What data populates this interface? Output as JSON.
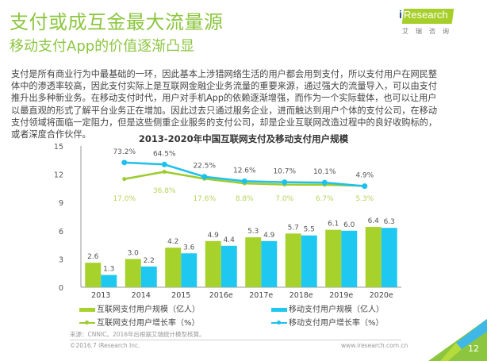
{
  "header": {
    "title": "支付或成互金最大流量源",
    "subtitle": "移动支付App的价值逐渐凸显"
  },
  "logo": {
    "brand_i": "i",
    "brand_text": "Research",
    "brand_cn": "艾瑞咨询"
  },
  "body_text": "支付是所有商业行为中最基础的一环，因此基本上涉猎网络生活的用户都会用到支付，所以支付用户在网民整体中的渗透率较高，因此支付实际上是互联网金融企业务流量的重要来源，通过强大的流量导入，可以由支付推升出多种新业务。在移动支付时代，用户对手机App的依赖逐渐增强，而作为一个实际载体，也可以让用户以最直观的形式了解平台业务正在增加。因此过去只通过服务企业，进而触达到用户个体的支付公司，在移动支付领域将面临一定阻力，但是这些侧重企业服务的支付公司，却是企业互联网改造过程中的良好收购标的，或者深度合作伙伴。",
  "colors": {
    "brand_green": "#8cc63f",
    "internet_bar": "#a6d22b",
    "mobile_bar": "#1ec8f0",
    "internet_line": "#9ccc2c",
    "mobile_line": "#1ec0ec",
    "corner_blue": "#3fb8e8",
    "corner_green": "#8cc63f"
  },
  "chart_data": {
    "type": "bar",
    "title": "2013-2020年中国互联网支付及移动支付用户规模",
    "xlabel": "",
    "ylabel": "",
    "categories": [
      "2013",
      "2014",
      "2015",
      "2016e",
      "2017e",
      "2018e",
      "2019e",
      "2020e"
    ],
    "ylim": [
      0,
      15
    ],
    "yticks": [
      0,
      3,
      6,
      9,
      12,
      15
    ],
    "grid": false,
    "legend_position": "bottom",
    "series": [
      {
        "name": "互联网支付用户规模（亿人）",
        "type": "bar",
        "values": [
          2.6,
          3.0,
          4.2,
          4.9,
          5.3,
          5.7,
          6.1,
          6.4
        ],
        "labels": [
          "2.6",
          "3.0",
          "4.2",
          "4.9",
          "5.3",
          "5.7",
          "6.1",
          "6.4"
        ]
      },
      {
        "name": "移动支付用户规模（亿人）",
        "type": "bar",
        "values": [
          1.3,
          2.2,
          3.6,
          4.4,
          4.9,
          5.5,
          6.0,
          6.3
        ],
        "labels": [
          "1.3",
          "2.2",
          "3.6",
          "4.4",
          "4.9",
          "5.5",
          "6.0",
          "6.3"
        ]
      },
      {
        "name": "互联网支付用户增长率（%）",
        "type": "line",
        "categories": [
          "2014",
          "2015",
          "2016e",
          "2017e",
          "2018e",
          "2019e",
          "2020e"
        ],
        "values": [
          17.0,
          36.8,
          17.6,
          8.8,
          7.0,
          6.7,
          5.3
        ],
        "labels": [
          "17.0%",
          "36.8%",
          "17.6%",
          "8.8%",
          "7.0%",
          "6.7%",
          "5.3%"
        ]
      },
      {
        "name": "移动支付用户增长率（%）",
        "type": "line",
        "categories": [
          "2014",
          "2015",
          "2016e",
          "2017e",
          "2018e",
          "2019e",
          "2020e"
        ],
        "values": [
          73.2,
          64.5,
          22.5,
          12.6,
          10.7,
          10.1,
          4.9
        ],
        "labels": [
          "73.2%",
          "64.5%",
          "22.5%",
          "12.6%",
          "10.7%",
          "10.1%",
          "4.9%"
        ]
      }
    ]
  },
  "legend": {
    "internet_bar": "互联网支付用户规模（亿人）",
    "mobile_bar": "移动支付用户规模（亿人）",
    "internet_line": "互联网支付用户增长率（%）",
    "mobile_line": "移动支付用户增长率（%）"
  },
  "footer": {
    "source": "来源：CNNIC。2016年后根据艾瑞统计模型核算。",
    "copyright": "©2016.7 iResearch Inc.",
    "website": "www.iresearch.com.cn",
    "page_number": "12"
  }
}
